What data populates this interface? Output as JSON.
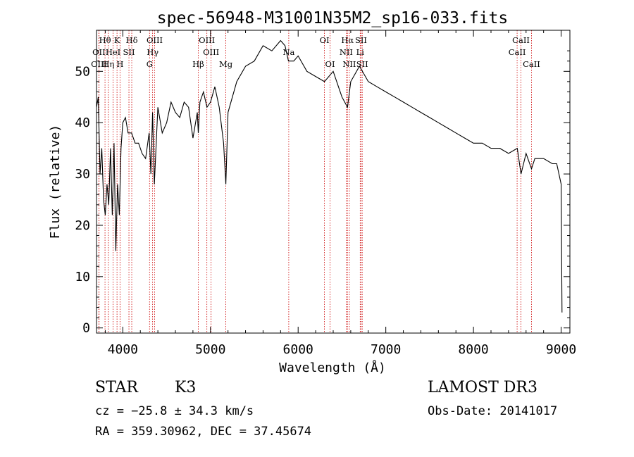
{
  "chart_data": {
    "type": "line",
    "title": "spec-56948-M31001N35M2_sp16-033.fits",
    "xlabel": "Wavelength (Å)",
    "ylabel": "Flux (relative)",
    "xlim": [
      3700,
      9100
    ],
    "ylim": [
      -1,
      58
    ],
    "xticks": [
      4000,
      5000,
      6000,
      7000,
      8000,
      9000
    ],
    "yticks": [
      0,
      10,
      20,
      30,
      40,
      50
    ],
    "series": [
      {
        "name": "flux",
        "x": [
          3700,
          3720,
          3740,
          3760,
          3780,
          3800,
          3820,
          3840,
          3860,
          3880,
          3900,
          3920,
          3940,
          3960,
          3980,
          4000,
          4030,
          4060,
          4100,
          4140,
          4180,
          4220,
          4260,
          4300,
          4320,
          4340,
          4360,
          4400,
          4450,
          4500,
          4550,
          4600,
          4650,
          4700,
          4750,
          4800,
          4850,
          4861,
          4880,
          4920,
          4960,
          5000,
          5050,
          5100,
          5150,
          5175,
          5200,
          5250,
          5300,
          5400,
          5500,
          5600,
          5700,
          5800,
          5850,
          5890,
          5950,
          6000,
          6100,
          6200,
          6300,
          6400,
          6500,
          6563,
          6600,
          6700,
          6800,
          6900,
          7000,
          7100,
          7200,
          7300,
          7400,
          7500,
          7600,
          7700,
          7800,
          7900,
          8000,
          8100,
          8200,
          8300,
          8400,
          8500,
          8542,
          8600,
          8662,
          8700,
          8800,
          8900,
          8950,
          9000,
          9010
        ],
        "y": [
          43,
          45,
          30,
          35,
          25,
          22,
          28,
          24,
          35,
          22,
          36,
          15,
          28,
          22,
          35,
          40,
          41,
          38,
          38,
          36,
          36,
          34,
          33,
          38,
          30,
          42,
          28,
          43,
          38,
          40,
          44,
          42,
          41,
          44,
          43,
          37,
          42,
          38,
          44,
          46,
          43,
          44,
          47,
          43,
          36,
          28,
          42,
          45,
          48,
          51,
          52,
          55,
          54,
          56,
          55,
          52,
          52,
          53,
          50,
          49,
          48,
          50,
          45,
          43,
          48,
          51,
          48,
          47,
          46,
          45,
          44,
          43,
          42,
          41,
          40,
          39,
          38,
          37,
          36,
          36,
          35,
          35,
          34,
          35,
          30,
          34,
          31,
          33,
          33,
          32,
          32,
          28,
          3
        ]
      }
    ],
    "lines": [
      {
        "name": "Hθ",
        "wavelength": 3797,
        "row": 0
      },
      {
        "name": "OII",
        "wavelength": 3727,
        "row": 1
      },
      {
        "name": "OIII",
        "wavelength": 3729,
        "row": 2
      },
      {
        "name": "K",
        "wavelength": 3934,
        "row": 0
      },
      {
        "name": "HeI",
        "wavelength": 3889,
        "row": 1
      },
      {
        "name": "Hη",
        "wavelength": 3835,
        "row": 2
      },
      {
        "name": "H",
        "wavelength": 3968,
        "row": 2
      },
      {
        "name": "Hδ",
        "wavelength": 4102,
        "row": 0
      },
      {
        "name": "SII",
        "wavelength": 4070,
        "row": 1
      },
      {
        "name": "OIII",
        "wavelength": 4363,
        "row": 0
      },
      {
        "name": "Hγ",
        "wavelength": 4340,
        "row": 1
      },
      {
        "name": "G",
        "wavelength": 4305,
        "row": 2
      },
      {
        "name": "Hβ",
        "wavelength": 4861,
        "row": 2
      },
      {
        "name": "OIII",
        "wavelength": 4959,
        "row": 0
      },
      {
        "name": "OIII",
        "wavelength": 5007,
        "row": 1
      },
      {
        "name": "Mg",
        "wavelength": 5175,
        "row": 2
      },
      {
        "name": "Na",
        "wavelength": 5893,
        "row": 1
      },
      {
        "name": "OI",
        "wavelength": 6300,
        "row": 0
      },
      {
        "name": "OI",
        "wavelength": 6364,
        "row": 2
      },
      {
        "name": "Hα",
        "wavelength": 6563,
        "row": 0
      },
      {
        "name": "NII",
        "wavelength": 6548,
        "row": 1
      },
      {
        "name": "NII",
        "wavelength": 6584,
        "row": 2
      },
      {
        "name": "SII",
        "wavelength": 6717,
        "row": 0
      },
      {
        "name": "Li",
        "wavelength": 6708,
        "row": 1
      },
      {
        "name": "SII",
        "wavelength": 6731,
        "row": 2
      },
      {
        "name": "CaII",
        "wavelength": 8542,
        "row": 0
      },
      {
        "name": "CaII",
        "wavelength": 8498,
        "row": 1
      },
      {
        "name": "CaII",
        "wavelength": 8662,
        "row": 2
      }
    ]
  },
  "info": {
    "class": "STAR",
    "subclass": "K3",
    "cz": "cz = −25.8 ± 34.3 km/s",
    "radec": "RA = 359.30962, DEC =  37.45674",
    "survey": "LAMOST DR3",
    "obsdate": "Obs-Date: 20141017"
  },
  "colors": {
    "line": "#000000",
    "marker": "#cc0000"
  }
}
